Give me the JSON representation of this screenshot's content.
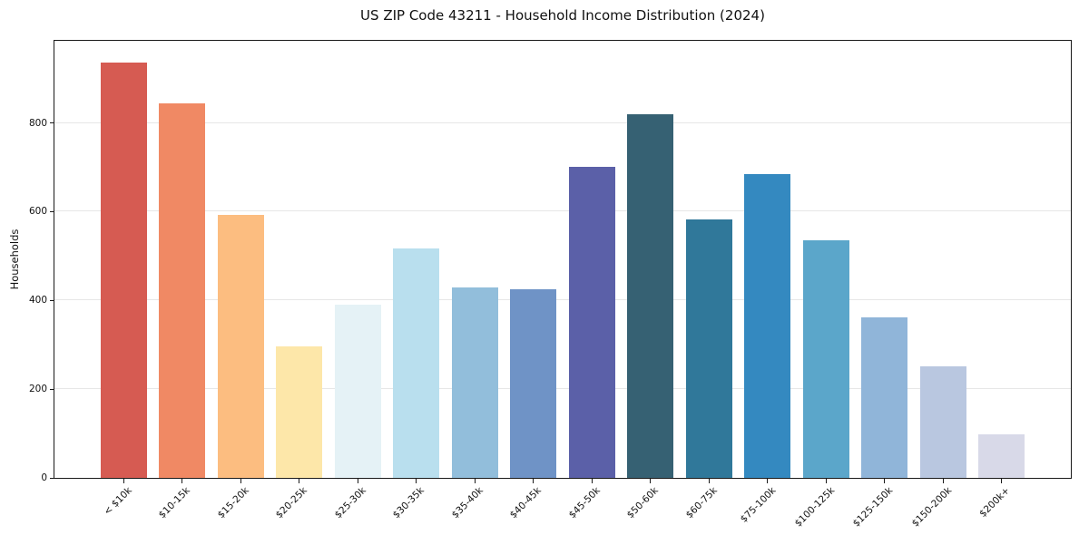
{
  "chart_data": {
    "type": "bar",
    "title": "US ZIP Code 43211 - Household Income Distribution (2024)",
    "xlabel": "",
    "ylabel": "Households",
    "categories": [
      "< $10k",
      "$10-15k",
      "$15-20k",
      "$20-25k",
      "$25-30k",
      "$30-35k",
      "$35-40k",
      "$40-45k",
      "$45-50k",
      "$50-60k",
      "$60-75k",
      "$75-100k",
      "$100-125k",
      "$125-150k",
      "$150-200k",
      "$200k+"
    ],
    "values": [
      935,
      845,
      592,
      296,
      390,
      518,
      429,
      425,
      700,
      820,
      583,
      684,
      535,
      361,
      252,
      98
    ],
    "bar_colors": [
      "#d65b52",
      "#f08964",
      "#fcbd80",
      "#fde7a9",
      "#e5f2f6",
      "#b9dfee",
      "#92bedb",
      "#6f93c6",
      "#5b60a8",
      "#366173",
      "#30789a",
      "#3489c0",
      "#5ba6ca",
      "#90b5d9",
      "#b9c7e0",
      "#d8d9e8"
    ],
    "ylim": [
      0,
      985
    ],
    "yticks": [
      0,
      200,
      400,
      600,
      800
    ],
    "grid": "horizontal",
    "legend": "none",
    "background_color": "#ffffff",
    "axis_color": "#1a1a1a",
    "grid_color": "#e7e7e7",
    "text_color": "#111111"
  }
}
